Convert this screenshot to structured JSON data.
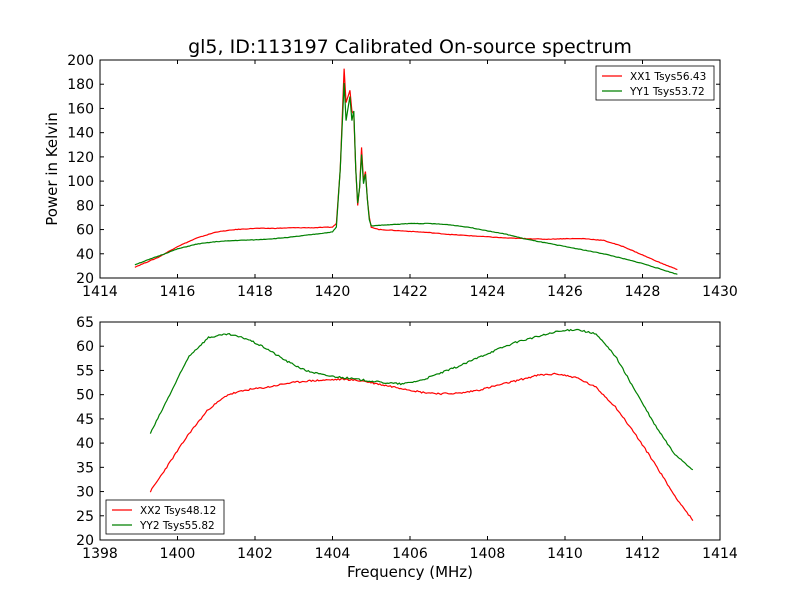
{
  "title": "gl5, ID:113197 Calibrated On-source spectrum",
  "colors": {
    "red": "#ff0000",
    "green": "#008000",
    "axes": "#000000",
    "background": "#ffffff"
  },
  "chart_data": [
    {
      "type": "line",
      "title": "gl5, ID:113197 Calibrated On-source spectrum",
      "xlabel": "",
      "ylabel": "Power in Kelvin",
      "xlim": [
        1414,
        1430
      ],
      "ylim": [
        20,
        200
      ],
      "xticks": [
        1414,
        1416,
        1418,
        1420,
        1422,
        1424,
        1426,
        1428,
        1430
      ],
      "yticks": [
        20,
        40,
        60,
        80,
        100,
        120,
        140,
        160,
        180,
        200
      ],
      "grid": false,
      "legend_position": "top-right",
      "series": [
        {
          "name": "XX1 Tsys56.43",
          "color": "#ff0000",
          "x": [
            1414.9,
            1415.5,
            1416.0,
            1416.5,
            1417.0,
            1417.5,
            1418.0,
            1418.5,
            1419.0,
            1419.5,
            1420.0,
            1420.1,
            1420.2,
            1420.3,
            1420.35,
            1420.45,
            1420.5,
            1420.55,
            1420.6,
            1420.65,
            1420.7,
            1420.75,
            1420.8,
            1420.85,
            1420.9,
            1420.95,
            1421.0,
            1421.2,
            1421.5,
            1422.0,
            1422.5,
            1423.0,
            1423.5,
            1424.0,
            1424.5,
            1425.0,
            1425.5,
            1426.0,
            1426.5,
            1427.0,
            1427.5,
            1428.0,
            1428.5,
            1428.9
          ],
          "y": [
            29,
            37,
            46,
            53,
            58,
            60,
            61,
            61,
            61.5,
            61.5,
            62,
            65,
            110,
            193,
            165,
            175,
            158,
            155,
            110,
            80,
            95,
            128,
            100,
            108,
            85,
            70,
            62,
            60,
            59.5,
            58.5,
            57.5,
            56,
            55,
            54,
            53,
            52.5,
            52,
            52.5,
            52.5,
            51,
            46,
            39,
            32,
            27
          ]
        },
        {
          "name": "YY1 Tsys53.72",
          "color": "#008000",
          "x": [
            1414.9,
            1415.5,
            1416.0,
            1416.5,
            1417.0,
            1417.5,
            1418.0,
            1418.5,
            1419.0,
            1419.5,
            1420.0,
            1420.1,
            1420.2,
            1420.3,
            1420.35,
            1420.45,
            1420.5,
            1420.55,
            1420.6,
            1420.65,
            1420.7,
            1420.75,
            1420.8,
            1420.85,
            1420.9,
            1420.95,
            1421.0,
            1421.2,
            1421.5,
            1422.0,
            1422.5,
            1423.0,
            1423.5,
            1424.0,
            1424.5,
            1425.0,
            1425.5,
            1426.0,
            1426.5,
            1427.0,
            1427.5,
            1428.0,
            1428.5,
            1428.9
          ],
          "y": [
            31,
            38,
            44,
            48,
            50,
            51,
            51.5,
            52.5,
            54,
            56,
            58,
            62,
            110,
            181,
            150,
            170,
            150,
            158,
            110,
            82,
            95,
            122,
            98,
            106,
            85,
            68,
            63,
            63.5,
            64,
            65,
            65,
            64,
            62,
            59,
            56,
            52,
            49,
            46,
            43,
            40,
            36,
            32,
            27,
            23
          ]
        }
      ]
    },
    {
      "type": "line",
      "title": "",
      "xlabel": "Frequency (MHz)",
      "ylabel": "",
      "xlim": [
        1398,
        1414
      ],
      "ylim": [
        20,
        65
      ],
      "xticks": [
        1398,
        1400,
        1402,
        1404,
        1406,
        1408,
        1410,
        1412,
        1414
      ],
      "yticks": [
        20,
        25,
        30,
        35,
        40,
        45,
        50,
        55,
        60,
        65
      ],
      "grid": false,
      "legend_position": "bottom-left",
      "series": [
        {
          "name": "XX2 Tsys48.12",
          "color": "#ff0000",
          "x": [
            1399.3,
            1399.8,
            1400.3,
            1400.8,
            1401.3,
            1401.8,
            1402.3,
            1402.8,
            1403.3,
            1403.8,
            1404.3,
            1404.8,
            1405.3,
            1405.8,
            1406.3,
            1406.8,
            1407.3,
            1407.8,
            1408.3,
            1408.8,
            1409.3,
            1409.8,
            1410.3,
            1410.8,
            1411.3,
            1411.8,
            1412.3,
            1412.8,
            1413.3
          ],
          "y": [
            30,
            36,
            42,
            47,
            50,
            51,
            51.5,
            52.3,
            52.8,
            53,
            53.2,
            52.8,
            52,
            51.3,
            50.5,
            50.2,
            50.3,
            51,
            52,
            53,
            54,
            54.3,
            53.5,
            51.5,
            47.5,
            42,
            36,
            29.5,
            24
          ]
        },
        {
          "name": "YY2 Tsys55.82",
          "color": "#008000",
          "x": [
            1399.3,
            1399.8,
            1400.3,
            1400.8,
            1401.3,
            1401.8,
            1402.3,
            1402.8,
            1403.3,
            1403.8,
            1404.3,
            1404.8,
            1405.3,
            1405.8,
            1406.3,
            1406.8,
            1407.3,
            1407.8,
            1408.3,
            1408.8,
            1409.3,
            1409.8,
            1410.3,
            1410.8,
            1411.3,
            1411.8,
            1412.3,
            1412.8,
            1413.3
          ],
          "y": [
            42,
            50,
            58,
            61.8,
            62.5,
            61.5,
            59.5,
            57,
            55,
            54,
            53.5,
            53,
            52.5,
            52.2,
            53,
            54.5,
            56,
            57.8,
            59.5,
            61,
            62,
            63,
            63.5,
            62.5,
            58,
            51,
            44,
            38,
            34.5
          ]
        }
      ]
    }
  ]
}
